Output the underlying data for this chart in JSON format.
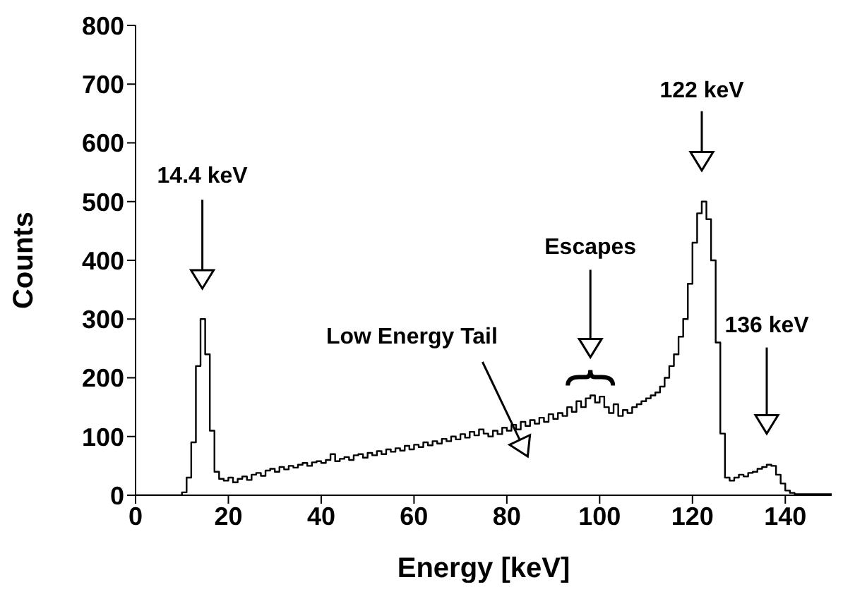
{
  "chart_data": {
    "type": "histogram",
    "xlabel": "Energy [keV]",
    "ylabel": "Counts",
    "color": "#000000",
    "bins": [
      0,
      1,
      2,
      3,
      4,
      5,
      6,
      7,
      8,
      9,
      10,
      11,
      12,
      13,
      14,
      15,
      16,
      17,
      18,
      19,
      20,
      21,
      22,
      23,
      24,
      25,
      26,
      27,
      28,
      29,
      30,
      31,
      32,
      33,
      34,
      35,
      36,
      37,
      38,
      39,
      40,
      41,
      42,
      43,
      44,
      45,
      46,
      47,
      48,
      49,
      50,
      51,
      52,
      53,
      54,
      55,
      56,
      57,
      58,
      59,
      60,
      61,
      62,
      63,
      64,
      65,
      66,
      67,
      68,
      69,
      70,
      71,
      72,
      73,
      74,
      75,
      76,
      77,
      78,
      79,
      80,
      81,
      82,
      83,
      84,
      85,
      86,
      87,
      88,
      89,
      90,
      91,
      92,
      93,
      94,
      95,
      96,
      97,
      98,
      99,
      100,
      101,
      102,
      103,
      104,
      105,
      106,
      107,
      108,
      109,
      110,
      111,
      112,
      113,
      114,
      115,
      116,
      117,
      118,
      119,
      120,
      121,
      122,
      123,
      124,
      125,
      126,
      127,
      128,
      129,
      130,
      131,
      132,
      133,
      134,
      135,
      136,
      137,
      138,
      139,
      140,
      141,
      142,
      143,
      144,
      145,
      146,
      147,
      148,
      149,
      150
    ],
    "values": [
      0,
      0,
      0,
      0,
      0,
      0,
      0,
      0,
      0,
      0,
      5,
      30,
      90,
      220,
      300,
      240,
      110,
      40,
      28,
      25,
      30,
      22,
      28,
      32,
      26,
      35,
      38,
      33,
      42,
      45,
      40,
      48,
      44,
      50,
      47,
      52,
      55,
      50,
      56,
      58,
      55,
      60,
      70,
      58,
      62,
      65,
      60,
      68,
      70,
      64,
      72,
      68,
      75,
      70,
      78,
      74,
      80,
      76,
      84,
      78,
      86,
      82,
      90,
      85,
      92,
      88,
      96,
      92,
      100,
      95,
      104,
      98,
      108,
      102,
      112,
      105,
      100,
      110,
      104,
      115,
      110,
      120,
      112,
      125,
      118,
      128,
      122,
      132,
      125,
      138,
      130,
      140,
      135,
      150,
      142,
      160,
      150,
      165,
      170,
      158,
      168,
      150,
      140,
      155,
      135,
      145,
      140,
      150,
      155,
      160,
      165,
      170,
      175,
      185,
      200,
      220,
      240,
      270,
      300,
      360,
      430,
      480,
      500,
      470,
      400,
      260,
      105,
      30,
      25,
      30,
      35,
      32,
      38,
      40,
      45,
      48,
      52,
      50,
      35,
      20,
      8,
      4,
      2,
      2,
      2,
      2,
      2,
      2,
      2,
      2
    ],
    "xlim": [
      0,
      150
    ],
    "xticks": [
      0,
      20,
      40,
      60,
      80,
      100,
      120,
      140
    ],
    "ylim": [
      0,
      800
    ],
    "yticks": [
      0,
      100,
      200,
      300,
      400,
      500,
      600,
      700,
      800
    ],
    "annotations": [
      "14.4 keV",
      "122 keV",
      "136 keV",
      "Escapes",
      "Low Energy Tail"
    ]
  }
}
